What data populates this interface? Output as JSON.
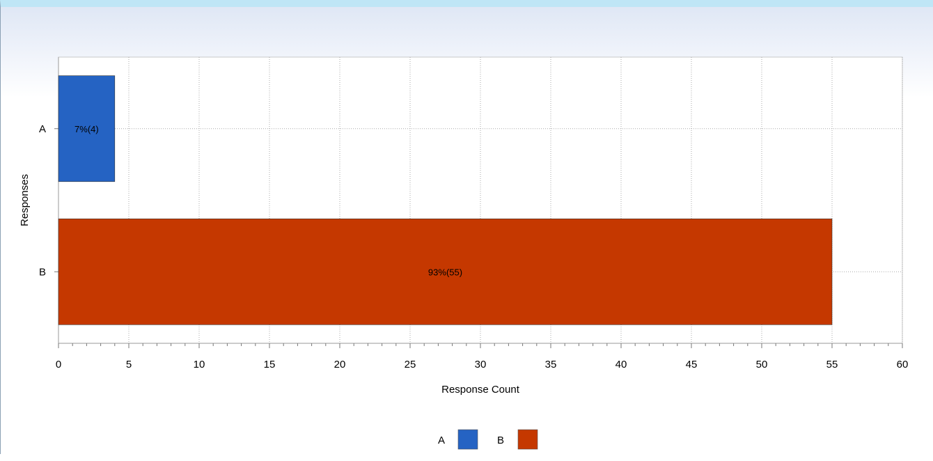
{
  "chart_data": {
    "type": "bar",
    "orientation": "horizontal",
    "categories": [
      "A",
      "B"
    ],
    "values": [
      4,
      55
    ],
    "data_labels": [
      "7%(4)",
      "93%(55)"
    ],
    "colors": [
      "#2563c3",
      "#c53800"
    ],
    "xlabel": "Response Count",
    "ylabel": "Responses",
    "xlim": [
      0,
      60
    ],
    "x_ticks": [
      0,
      5,
      10,
      15,
      20,
      25,
      30,
      35,
      40,
      45,
      50,
      55,
      60
    ],
    "grid": true,
    "legend": {
      "placement": "bottom-center",
      "entries": [
        {
          "label": "A",
          "color": "#2563c3"
        },
        {
          "label": "B",
          "color": "#c53800"
        }
      ]
    }
  }
}
